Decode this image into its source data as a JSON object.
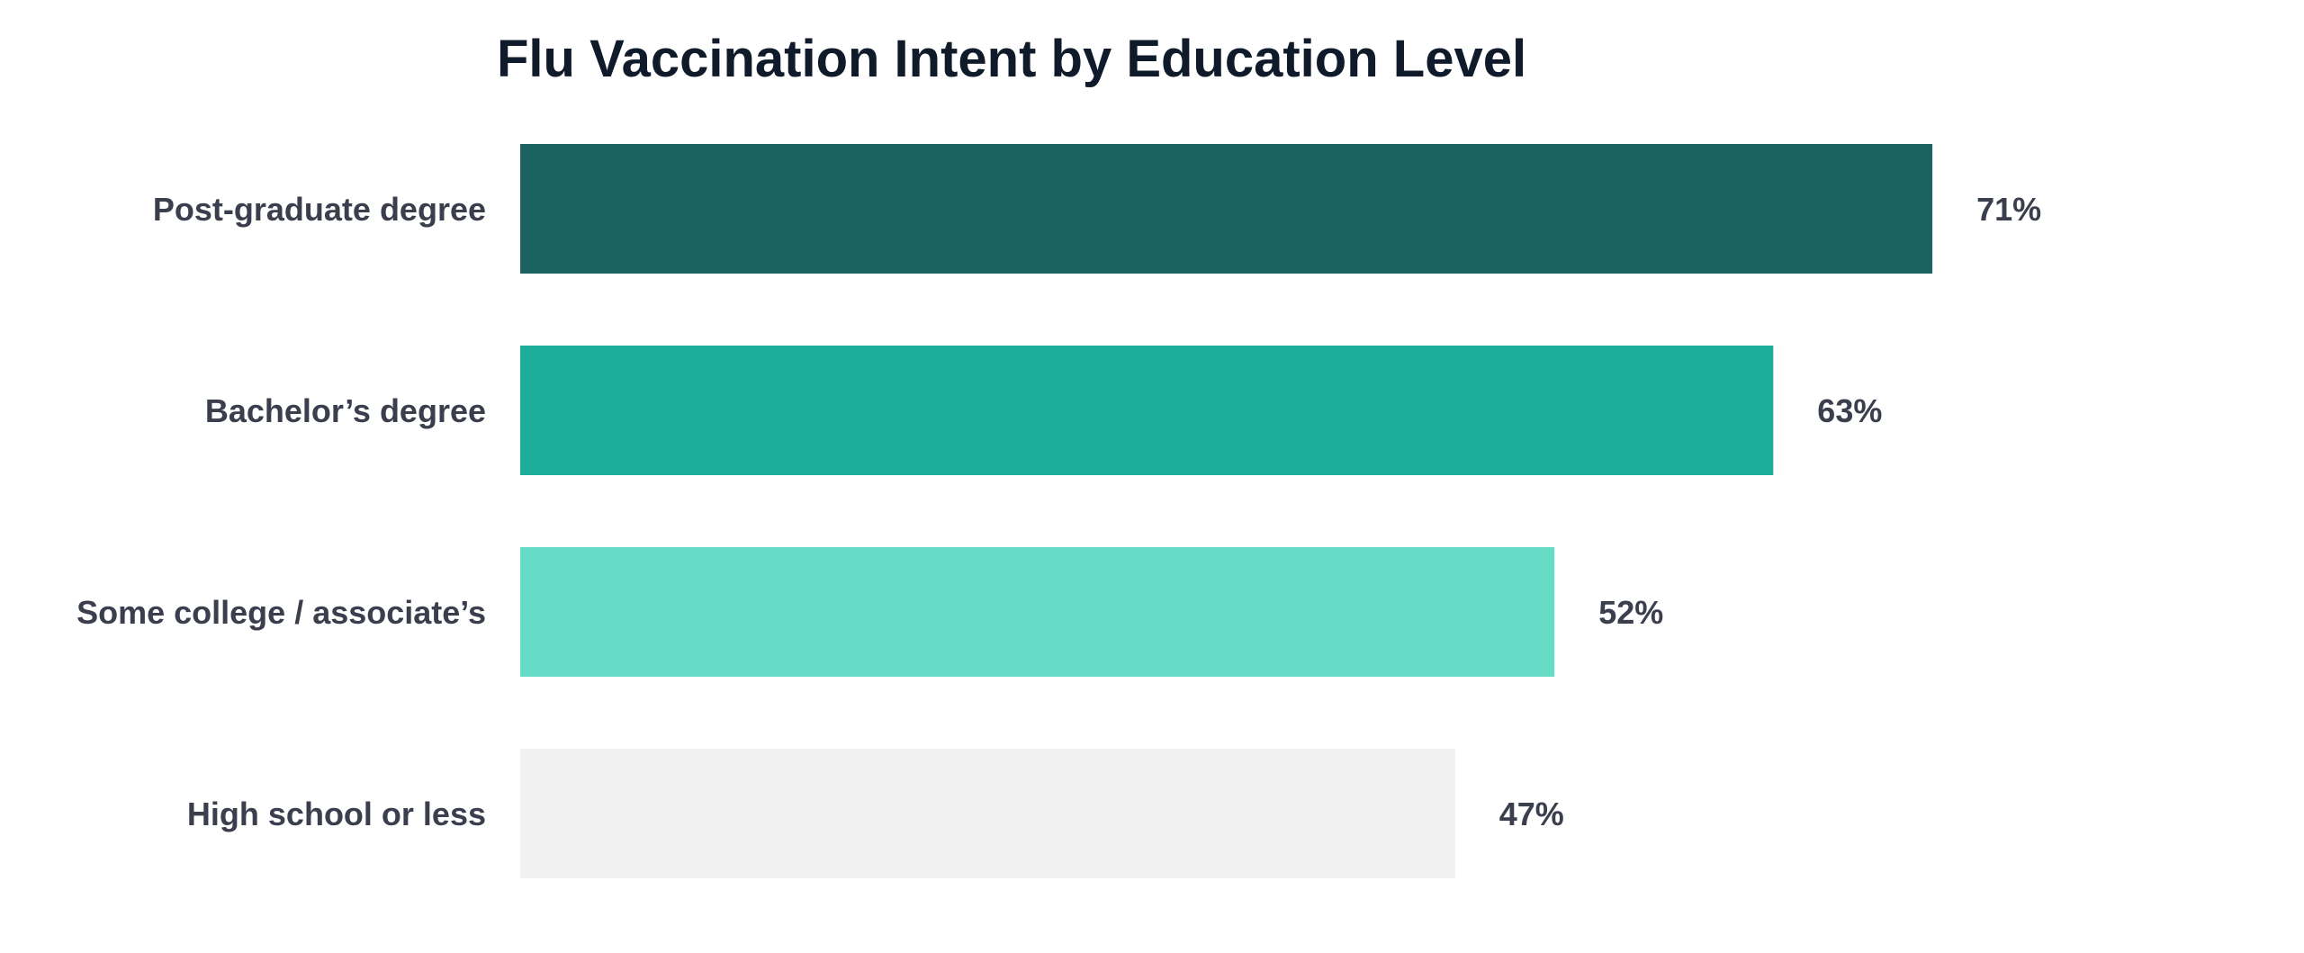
{
  "chart_data": {
    "type": "bar",
    "orientation": "horizontal",
    "title": "Flu Vaccination Intent by Education Level",
    "xlabel": "",
    "ylabel": "",
    "xlim": [
      0,
      100
    ],
    "grid": false,
    "categories": [
      "Post-graduate degree",
      "Bachelor’s degree",
      "Some college / associate’s",
      "High school or less"
    ],
    "values": [
      71,
      63,
      52,
      47
    ],
    "data_labels": [
      "71%",
      "63%",
      "52%",
      "47%"
    ],
    "colors": [
      "#1b6361",
      "#1cae98",
      "#66dcc6",
      "#f1f1f1"
    ]
  }
}
